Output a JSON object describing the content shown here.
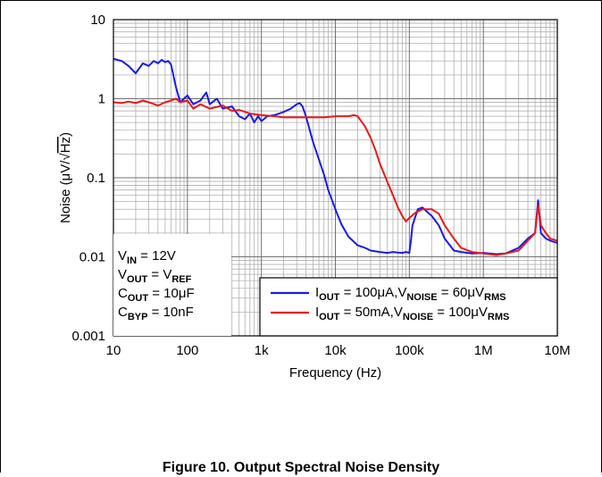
{
  "figure_caption": "Figure 10. Output Spectral Noise Density",
  "chart_data": {
    "type": "line",
    "xlabel": "Frequency (Hz)",
    "ylabel_parts": {
      "pre": "Noise (μV/",
      "radicand": "Hz",
      "post": ")"
    },
    "x_scale": "log",
    "y_scale": "log",
    "xlim": [
      10,
      10000000
    ],
    "ylim": [
      0.001,
      10
    ],
    "x_ticks": [
      10,
      100,
      1000,
      10000,
      100000,
      1000000,
      10000000
    ],
    "x_tick_labels": [
      "10",
      "100",
      "1k",
      "10k",
      "100k",
      "1M",
      "10M"
    ],
    "y_ticks": [
      0.001,
      0.01,
      0.1,
      1,
      10
    ],
    "y_tick_labels": [
      "0.001",
      "0.01",
      "0.1",
      "1",
      "10"
    ],
    "grid": true,
    "legend_placement": "bottom-right",
    "conditions": [
      {
        "main": "V",
        "sub": "IN",
        "rest": " = 12V"
      },
      {
        "main": "V",
        "sub": "OUT",
        "rest": " = V",
        "sub2": "REF"
      },
      {
        "main": "C",
        "sub": "OUT",
        "rest": " = 10μF"
      },
      {
        "main": "C",
        "sub": "BYP",
        "rest": " = 10nF"
      }
    ],
    "series": [
      {
        "name": "IOUT = 100μA, VNOISE = 60μVRMS",
        "legend": {
          "a": "I",
          "a_sub": "OUT",
          "b": " = 100μA,V",
          "b_sub": "NOISE",
          "c": " = 60μV",
          "c_sub": "RMS"
        },
        "color": "#1a1ae6",
        "x": [
          10,
          13,
          16,
          20,
          25,
          30,
          35,
          40,
          45,
          50,
          55,
          60,
          70,
          80,
          100,
          120,
          150,
          180,
          200,
          250,
          300,
          400,
          500,
          600,
          700,
          800,
          900,
          1000,
          1200,
          1500,
          2000,
          2500,
          3000,
          3300,
          3600,
          4000,
          4500,
          5000,
          6000,
          7000,
          8000,
          10000,
          12000,
          15000,
          20000,
          25000,
          30000,
          40000,
          50000,
          60000,
          70000,
          80000,
          90000,
          100000,
          105000,
          110000,
          130000,
          150000,
          180000,
          200000,
          250000,
          300000,
          400000,
          500000,
          700000,
          1000000,
          1500000,
          2000000,
          3000000,
          4000000,
          5000000,
          5500000,
          6000000,
          7000000,
          8000000,
          10000000
        ],
        "y": [
          3.2,
          3.0,
          2.6,
          2.1,
          2.8,
          2.6,
          3.0,
          2.8,
          3.1,
          2.9,
          3.0,
          2.7,
          1.4,
          0.9,
          1.1,
          0.85,
          0.95,
          1.2,
          0.85,
          1.0,
          0.75,
          0.8,
          0.6,
          0.55,
          0.65,
          0.5,
          0.6,
          0.52,
          0.6,
          0.62,
          0.68,
          0.75,
          0.85,
          0.88,
          0.8,
          0.6,
          0.4,
          0.28,
          0.17,
          0.11,
          0.07,
          0.04,
          0.026,
          0.018,
          0.014,
          0.013,
          0.012,
          0.0115,
          0.0112,
          0.0115,
          0.0113,
          0.0112,
          0.0115,
          0.0112,
          0.016,
          0.025,
          0.04,
          0.042,
          0.036,
          0.033,
          0.025,
          0.017,
          0.012,
          0.0115,
          0.011,
          0.0112,
          0.0108,
          0.011,
          0.013,
          0.017,
          0.02,
          0.052,
          0.02,
          0.017,
          0.016,
          0.015
        ]
      },
      {
        "name": "IOUT = 50mA, VNOISE = 100μVRMS",
        "legend": {
          "a": "I",
          "a_sub": "OUT",
          "b": " = 50mA,V",
          "b_sub": "NOISE",
          "c": " = 100μV",
          "c_sub": "RMS"
        },
        "color": "#e61a1a",
        "x": [
          10,
          13,
          16,
          20,
          25,
          30,
          40,
          50,
          60,
          70,
          80,
          100,
          120,
          150,
          200,
          300,
          400,
          500,
          700,
          1000,
          1500,
          2000,
          3000,
          5000,
          7000,
          10000,
          15000,
          18000,
          20000,
          25000,
          30000,
          35000,
          40000,
          50000,
          60000,
          70000,
          80000,
          90000,
          100000,
          120000,
          150000,
          200000,
          250000,
          300000,
          400000,
          500000,
          700000,
          1000000,
          1500000,
          2000000,
          3000000,
          4000000,
          5000000,
          5500000,
          6000000,
          7000000,
          8000000,
          10000000
        ],
        "y": [
          0.9,
          0.88,
          0.92,
          0.88,
          0.95,
          0.9,
          0.82,
          0.9,
          0.95,
          1.0,
          0.9,
          0.95,
          0.75,
          0.85,
          0.75,
          0.82,
          0.7,
          0.72,
          0.65,
          0.62,
          0.6,
          0.58,
          0.58,
          0.58,
          0.58,
          0.6,
          0.6,
          0.62,
          0.6,
          0.45,
          0.32,
          0.22,
          0.15,
          0.09,
          0.06,
          0.042,
          0.033,
          0.028,
          0.031,
          0.036,
          0.04,
          0.04,
          0.035,
          0.025,
          0.017,
          0.013,
          0.0115,
          0.011,
          0.0105,
          0.011,
          0.012,
          0.016,
          0.02,
          0.045,
          0.025,
          0.02,
          0.017,
          0.016
        ]
      }
    ]
  }
}
